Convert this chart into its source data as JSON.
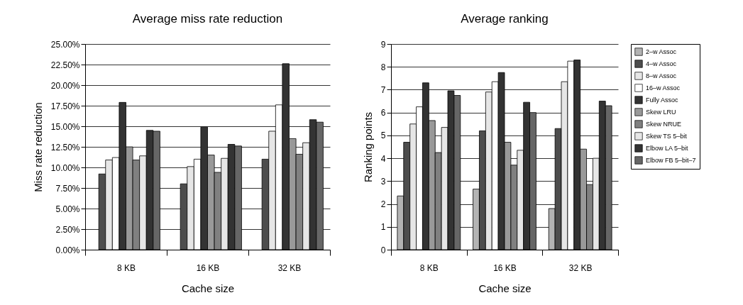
{
  "chart_data": [
    {
      "type": "bar",
      "title": "Average miss rate reduction",
      "xlabel": "Cache size",
      "ylabel": "Miss rate reduction",
      "categories": [
        "8 KB",
        "16 KB",
        "32 KB"
      ],
      "series": [
        {
          "values": [
            null,
            null,
            null
          ]
        },
        {
          "color": "#4d4d4d",
          "values": [
            9.2,
            8.0,
            11.0
          ]
        },
        {
          "color": "#e6e6e6",
          "values": [
            10.9,
            10.1,
            14.4
          ]
        },
        {
          "color": "#ffffff",
          "values": [
            11.2,
            11.0,
            17.6
          ]
        },
        {
          "color": "#333333",
          "values": [
            17.9,
            14.9,
            22.6
          ]
        },
        {
          "color": "#999999",
          "values": [
            12.5,
            11.5,
            13.5
          ]
        },
        {
          "color": "#808080",
          "values": [
            10.9,
            9.4,
            11.6
          ]
        },
        {
          "color": "#e6e6e6",
          "values": [
            11.4,
            11.1,
            13.0
          ]
        },
        {
          "color": "#333333",
          "values": [
            14.5,
            12.8,
            15.8
          ]
        },
        {
          "color": "#666666",
          "values": [
            14.4,
            12.6,
            15.5
          ]
        }
      ],
      "ylim": [
        0,
        25
      ],
      "yticks": [
        {
          "value": 0,
          "label": "0.00%"
        },
        {
          "value": 2.5,
          "label": "2.50%"
        },
        {
          "value": 5,
          "label": "5.00%"
        },
        {
          "value": 7.5,
          "label": "7.50%"
        },
        {
          "value": 10,
          "label": "10.00%"
        },
        {
          "value": 12.5,
          "label": "12.50%"
        },
        {
          "value": 15,
          "label": "15.00%"
        },
        {
          "value": 17.5,
          "label": "17.50%"
        },
        {
          "value": 20,
          "label": "20.00%"
        },
        {
          "value": 22.5,
          "label": "22.50%"
        },
        {
          "value": 25,
          "label": "25.00%"
        }
      ],
      "grid": "y",
      "legend": false
    },
    {
      "type": "bar",
      "title": "Average ranking",
      "xlabel": "Cache size",
      "ylabel": "Ranking points",
      "categories": [
        "8 KB",
        "16 KB",
        "32 KB"
      ],
      "series": [
        {
          "name": "2–w Assoc",
          "color": "#b3b3b3",
          "values": [
            2.35,
            2.65,
            1.8
          ]
        },
        {
          "name": "4–w Assoc",
          "color": "#4d4d4d",
          "values": [
            4.7,
            5.2,
            5.3
          ]
        },
        {
          "name": "8–w Assoc",
          "color": "#e6e6e6",
          "values": [
            5.5,
            6.9,
            7.35
          ]
        },
        {
          "name": "16–w Assoc",
          "color": "#ffffff",
          "values": [
            6.25,
            7.35,
            8.25
          ]
        },
        {
          "name": "Fully Assoc",
          "color": "#333333",
          "values": [
            7.3,
            7.75,
            8.3
          ]
        },
        {
          "name": "Skew LRU",
          "color": "#999999",
          "values": [
            5.65,
            4.7,
            4.4
          ]
        },
        {
          "name": "Skew NRUE",
          "color": "#808080",
          "values": [
            4.25,
            3.7,
            2.85
          ]
        },
        {
          "name": "Skew TS 5–bit",
          "color": "#e6e6e6",
          "values": [
            5.35,
            4.35,
            4.0
          ]
        },
        {
          "name": "Elbow LA 5–bit",
          "color": "#333333",
          "values": [
            6.95,
            6.45,
            6.5
          ]
        },
        {
          "name": "Elbow FB 5–bit–7",
          "color": "#666666",
          "values": [
            6.75,
            6.0,
            6.3
          ]
        }
      ],
      "ylim": [
        0,
        9
      ],
      "yticks": [
        0,
        1,
        2,
        3,
        4,
        5,
        6,
        7,
        8,
        9
      ],
      "grid": "y",
      "legend": "right"
    }
  ]
}
